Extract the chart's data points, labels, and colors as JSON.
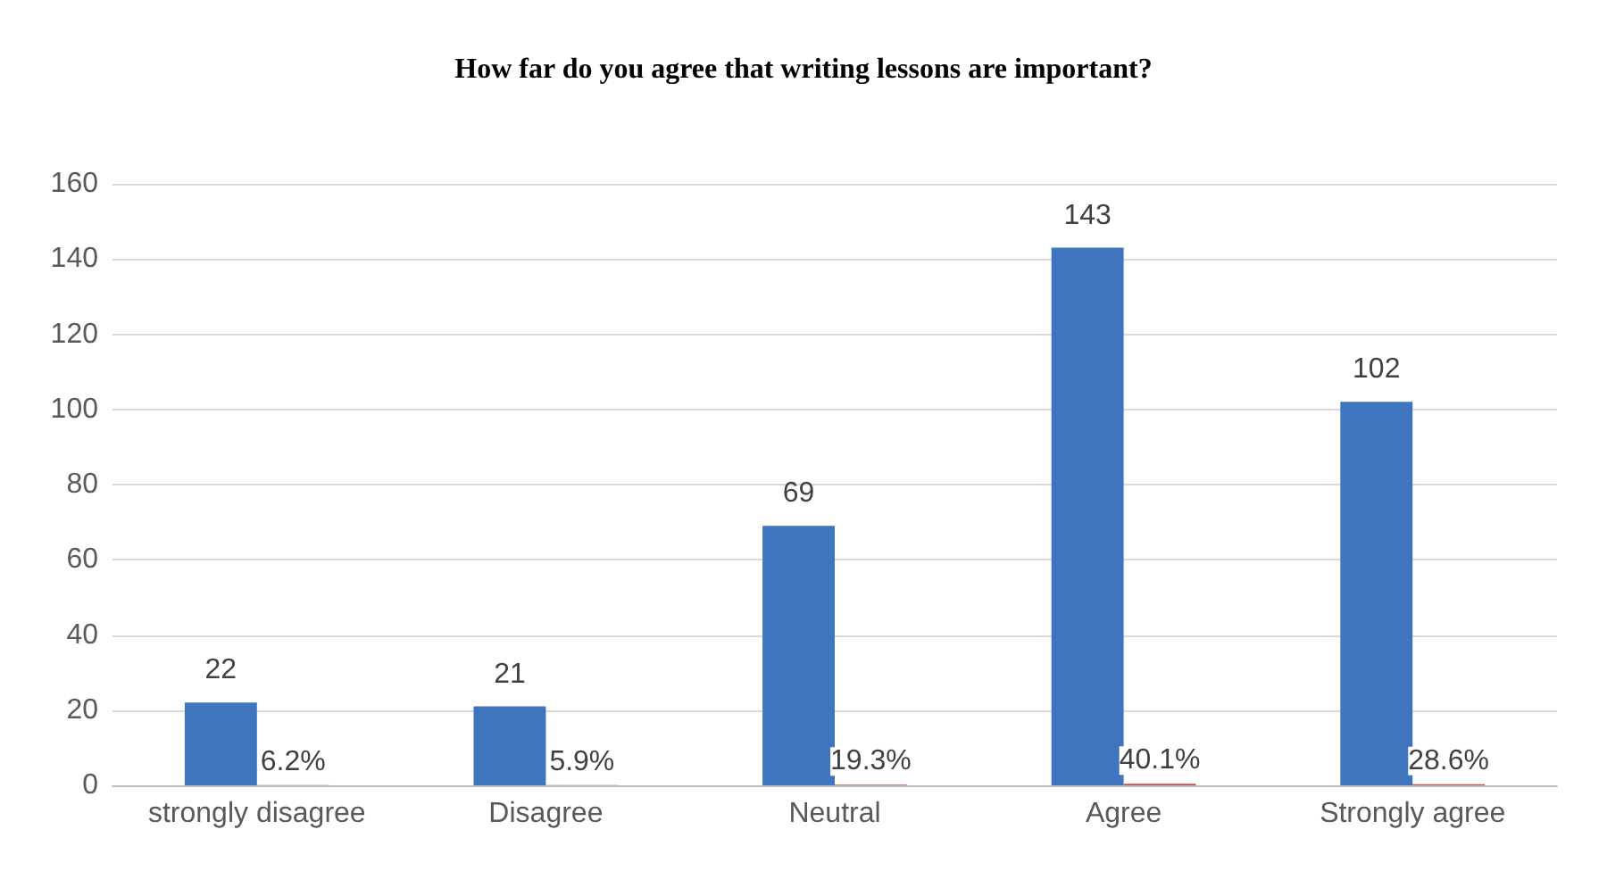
{
  "chart_data": {
    "type": "bar",
    "title": "How far do you agree that writing lessons are important?",
    "categories": [
      "strongly disagree",
      "Disagree",
      "Neutral",
      "Agree",
      "Strongly agree"
    ],
    "series": [
      {
        "color": "#3f74be",
        "values": [
          22,
          21,
          69,
          143,
          102
        ],
        "value_labels": [
          "22",
          "21",
          "69",
          "143",
          "102"
        ]
      },
      {
        "color": "#c0504d",
        "values": [
          0.062,
          0.059,
          0.193,
          0.401,
          0.286
        ],
        "value_labels": [
          "6.2%",
          "5.9%",
          "19.3%",
          "40.1%",
          "28.6%"
        ]
      }
    ],
    "ylim": [
      0,
      160
    ],
    "yticks": [
      0,
      20,
      40,
      60,
      80,
      100,
      120,
      140,
      160
    ],
    "grid": "y"
  }
}
